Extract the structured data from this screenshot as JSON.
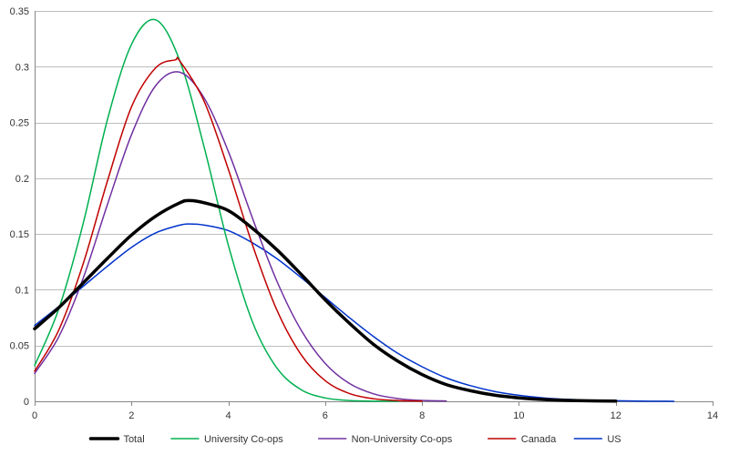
{
  "chart_data": {
    "type": "line",
    "title": "",
    "xlabel": "",
    "ylabel": "",
    "xlim": [
      0,
      14
    ],
    "ylim": [
      0,
      0.35
    ],
    "x_ticks": [
      0,
      2,
      4,
      6,
      8,
      10,
      12,
      14
    ],
    "x_tick_labels": [
      "0",
      "2",
      "4",
      "6",
      "8",
      "10",
      "12",
      "14"
    ],
    "y_ticks": [
      0,
      0.05,
      0.1,
      0.15,
      0.2,
      0.25,
      0.3,
      0.35
    ],
    "y_tick_labels": [
      "0",
      "0.05",
      "0.1",
      "0.15",
      "0.2",
      "0.25",
      "0.3",
      "0.35"
    ],
    "grid": {
      "horizontal": true,
      "vertical": false
    },
    "legend_position": "bottom",
    "series": [
      {
        "name": "Total",
        "color": "#000000",
        "x": [
          0,
          0.5,
          1,
          1.5,
          2,
          2.5,
          3,
          3.2,
          3.5,
          4,
          4.5,
          5,
          5.5,
          6,
          6.5,
          7,
          7.5,
          8,
          8.5,
          9,
          9.5,
          10,
          10.5,
          11,
          11.5,
          12
        ],
        "y": [
          0.065,
          0.084,
          0.106,
          0.128,
          0.149,
          0.166,
          0.178,
          0.18,
          0.178,
          0.171,
          0.155,
          0.136,
          0.114,
          0.091,
          0.07,
          0.051,
          0.036,
          0.024,
          0.015,
          0.0095,
          0.0055,
          0.0031,
          0.0016,
          0.0008,
          0.0004,
          0.0002
        ]
      },
      {
        "name": "University Co-ops",
        "color": "#00b050",
        "x": [
          0,
          0.5,
          1,
          1.5,
          2,
          2.5,
          3,
          3.5,
          4,
          4.5,
          5,
          5.5,
          6,
          6.5,
          7,
          7.5
        ],
        "y": [
          0.032,
          0.083,
          0.159,
          0.252,
          0.32,
          0.342,
          0.305,
          0.228,
          0.14,
          0.071,
          0.03,
          0.0105,
          0.003,
          0.0007,
          0.00015,
          3e-05
        ]
      },
      {
        "name": "Non-University Co-ops",
        "color": "#7030a0",
        "x": [
          0,
          0.5,
          1,
          1.5,
          2,
          2.5,
          3,
          3.5,
          4,
          4.5,
          5,
          5.5,
          6,
          6.5,
          7,
          7.5,
          8,
          8.5
        ],
        "y": [
          0.025,
          0.058,
          0.11,
          0.176,
          0.239,
          0.283,
          0.295,
          0.272,
          0.224,
          0.164,
          0.108,
          0.064,
          0.034,
          0.016,
          0.0067,
          0.0025,
          0.0008,
          0.0003
        ]
      },
      {
        "name": "Canada",
        "color": "#c00000",
        "x": [
          0,
          0.5,
          1,
          1.5,
          2,
          2.5,
          2.9,
          3,
          3.5,
          4,
          4.5,
          5,
          5.5,
          6,
          6.5,
          7,
          7.5,
          8
        ],
        "y": [
          0.027,
          0.064,
          0.123,
          0.197,
          0.264,
          0.299,
          0.306,
          0.305,
          0.269,
          0.208,
          0.14,
          0.082,
          0.042,
          0.0185,
          0.007,
          0.0023,
          0.0007,
          0.0002
        ]
      },
      {
        "name": "US",
        "color": "#0033cc",
        "x": [
          0,
          0.5,
          1,
          1.5,
          2,
          2.5,
          3,
          3.2,
          3.5,
          4,
          4.5,
          5,
          5.5,
          6,
          6.5,
          7,
          7.5,
          8,
          8.5,
          9,
          9.5,
          10,
          10.5,
          11,
          11.5,
          12,
          12.5,
          13,
          13.2
        ],
        "y": [
          0.068,
          0.085,
          0.103,
          0.121,
          0.138,
          0.151,
          0.158,
          0.159,
          0.158,
          0.153,
          0.142,
          0.128,
          0.111,
          0.093,
          0.075,
          0.058,
          0.043,
          0.031,
          0.021,
          0.014,
          0.0088,
          0.0054,
          0.0031,
          0.0017,
          0.0009,
          0.0005,
          0.0002,
          0.0001,
          5e-05
        ]
      }
    ]
  }
}
